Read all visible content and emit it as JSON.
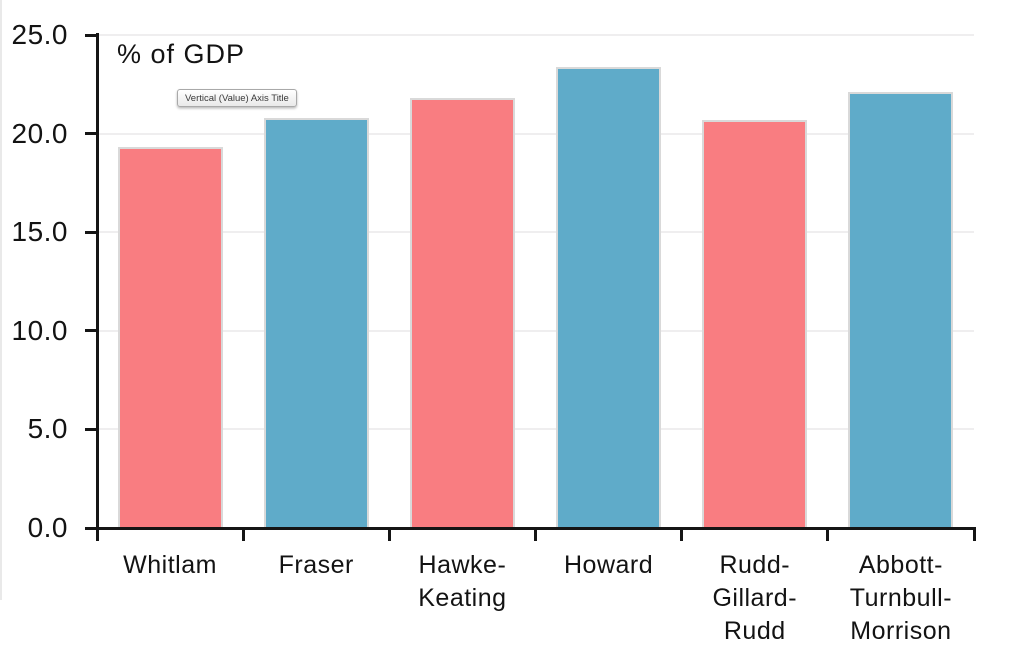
{
  "chart_data": {
    "type": "bar",
    "title": "% of GDP",
    "categories": [
      "Whitlam",
      "Fraser",
      "Hawke-Keating",
      "Howard",
      "Rudd-Gillard-Rudd",
      "Abbott-Turnbull-Morrison"
    ],
    "category_lines": [
      [
        "Whitlam"
      ],
      [
        "Fraser"
      ],
      [
        "Hawke-",
        "Keating"
      ],
      [
        "Howard"
      ],
      [
        "Rudd-",
        "Gillard-",
        "Rudd"
      ],
      [
        "Abbott-",
        "Turnbull-",
        "Morrison"
      ]
    ],
    "values": [
      19.3,
      20.8,
      21.8,
      23.4,
      20.7,
      22.1
    ],
    "bar_colors": [
      "#f97d81",
      "#5fabc9",
      "#f97d81",
      "#5fabc9",
      "#f97d81",
      "#5fabc9"
    ],
    "ylabel": "% of GDP",
    "ylim": [
      0,
      25
    ],
    "ytick_step": 5,
    "ytick_labels": [
      "0.0",
      "5.0",
      "10.0",
      "15.0",
      "20.0",
      "25.0"
    ],
    "grid": true,
    "legend_position": "none"
  },
  "tooltip": {
    "text": "Vertical (Value) Axis Title"
  },
  "colors": {
    "bar_red": "#f97d81",
    "bar_blue": "#5fabc9",
    "bar_stroke": "#d9d9d9",
    "gridline": "#efeeef",
    "axis": "#151515",
    "background": "#ffffff"
  }
}
